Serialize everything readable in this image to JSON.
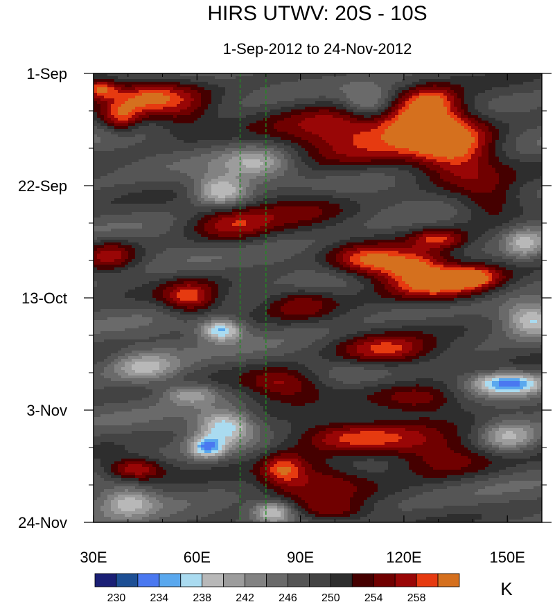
{
  "chart_data": {
    "type": "heatmap",
    "title": "HIRS UTWV: 20S - 10S",
    "subtitle": "1-Sep-2012 to 24-Nov-2012",
    "x_range": [
      30,
      160
    ],
    "x_ticks": [
      30,
      60,
      90,
      120,
      150
    ],
    "x_tick_labels": [
      "30E",
      "60E",
      "90E",
      "120E",
      "150E"
    ],
    "x_minor_ticks": [
      40,
      50,
      70,
      80,
      100,
      110,
      130,
      140,
      160
    ],
    "y_range": [
      "2012-09-01",
      "2012-11-24"
    ],
    "y_ticks": [
      "2012-09-01",
      "2012-09-22",
      "2012-10-13",
      "2012-11-03",
      "2012-11-24"
    ],
    "y_tick_labels": [
      "1-Sep",
      "22-Sep",
      "13-Oct",
      "3-Nov",
      "24-Nov"
    ],
    "y_minor_tick_days": [
      7,
      14,
      28,
      35,
      49,
      56,
      70,
      77
    ],
    "reference_lines_lon": [
      72.5,
      80
    ],
    "reference_line_color": "#228b22",
    "colorbar": {
      "unit": "K",
      "levels": [
        230,
        232,
        234,
        236,
        238,
        240,
        242,
        244,
        246,
        248,
        250,
        252,
        254,
        256,
        258,
        260
      ],
      "labels": [
        "230",
        "234",
        "238",
        "242",
        "246",
        "250",
        "254",
        "258"
      ],
      "label_values": [
        230,
        234,
        238,
        242,
        246,
        250,
        254,
        258
      ],
      "colors": [
        "#1a1f75",
        "#1d4f94",
        "#4a78f0",
        "#5aa8ee",
        "#aadbf0",
        "#b8b8b8",
        "#9c9c9c",
        "#828282",
        "#6a6a6a",
        "#555555",
        "#434343",
        "#2e2e2e",
        "#450000",
        "#700000",
        "#990606",
        "#e63a10",
        "#d5701e"
      ]
    },
    "grid": false
  }
}
